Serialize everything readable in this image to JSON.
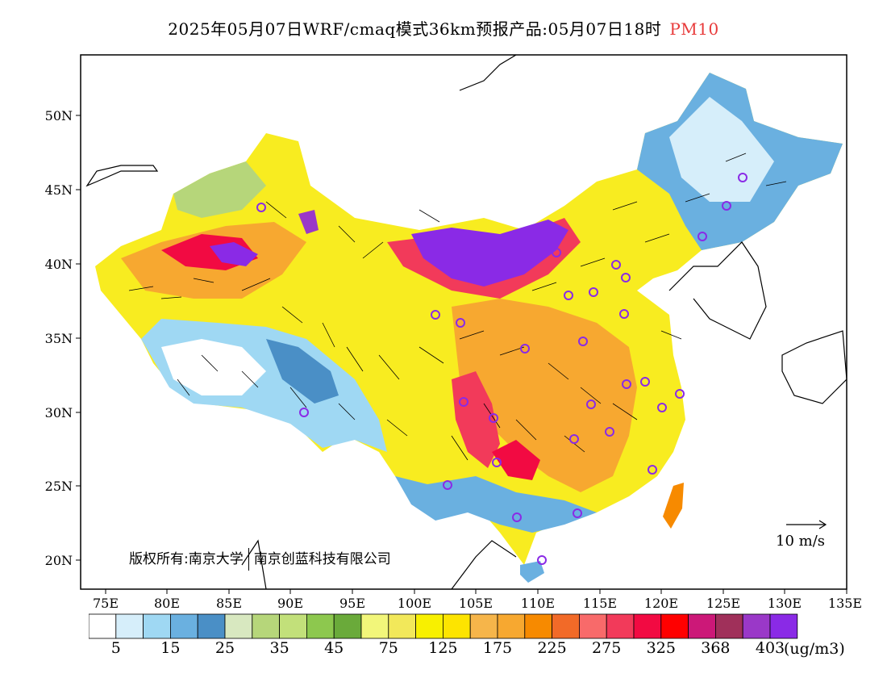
{
  "title": {
    "main": "2025年05月07日WRF/cmaq模式36km预报产品:05月07日18时",
    "pollutant": "PM10",
    "pollutant_color": "#e83a3a"
  },
  "map": {
    "lat_labels": [
      "50N",
      "45N",
      "40N",
      "35N",
      "30N",
      "25N",
      "20N"
    ],
    "lon_labels": [
      "75E",
      "80E",
      "85E",
      "90E",
      "95E",
      "100E",
      "105E",
      "110E",
      "115E",
      "120E",
      "125E",
      "130E",
      "135E"
    ]
  },
  "copyright": {
    "owner1": "版权所有:南京大学",
    "owner2": "南京创蓝科技有限公司"
  },
  "wind_scale": {
    "label": "10 m/s"
  },
  "colorbar": {
    "unit": "(ug/m3)",
    "colors": [
      "#ffffff",
      "#d6eefa",
      "#9fd8f3",
      "#6ab0e0",
      "#4a8fc6",
      "#d8e8c0",
      "#b6d67a",
      "#c2e07a",
      "#8dc84e",
      "#6aaa3a",
      "#f2f67a",
      "#f2e85a",
      "#f8f000",
      "#fde400",
      "#f6b54a",
      "#f7a830",
      "#f78a00",
      "#f26a28",
      "#f86a6a",
      "#f23a5a",
      "#f20a42",
      "#ff0000",
      "#cc1878",
      "#a0305a",
      "#9a38c8",
      "#8a2ae6"
    ],
    "labels": [
      "5",
      "15",
      "25",
      "35",
      "45",
      "75",
      "125",
      "175",
      "225",
      "275",
      "325",
      "368",
      "403"
    ]
  }
}
